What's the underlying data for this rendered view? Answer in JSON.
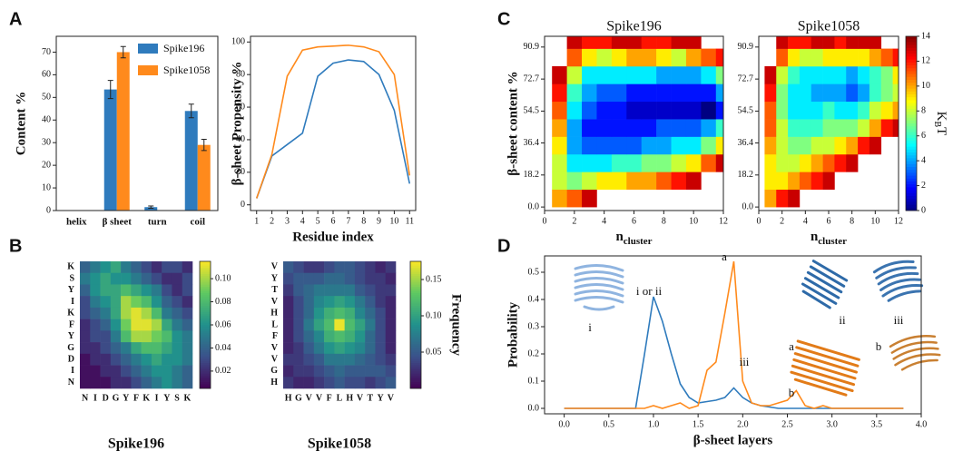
{
  "chart_data": [
    {
      "type": "bar",
      "panel_label": "A",
      "ylabel": "Content %",
      "categories": [
        "helix",
        "β sheet",
        "turn",
        "coil"
      ],
      "series": [
        {
          "name": "Spike196",
          "color": "#2f7bbd",
          "values": [
            0,
            53.5,
            1.5,
            44
          ],
          "errors": [
            0,
            4,
            0.5,
            3
          ]
        },
        {
          "name": "Spike1058",
          "color": "#ff8a1c",
          "values": [
            0,
            70,
            0,
            29
          ],
          "errors": [
            0,
            2.5,
            0,
            2.5
          ]
        }
      ],
      "ylim": [
        0,
        77
      ],
      "yticks": [
        0,
        10,
        20,
        30,
        40,
        50,
        60,
        70
      ],
      "legend": "upper right"
    },
    {
      "type": "line",
      "ylabel": "β-sheet Propensity %",
      "xlabel": "Residue index",
      "x": [
        1,
        2,
        3,
        4,
        5,
        6,
        7,
        8,
        9,
        10,
        11
      ],
      "series": [
        {
          "color": "#2f7bbd",
          "values": [
            4,
            30,
            37,
            44,
            79,
            87,
            89,
            88,
            80,
            58,
            13
          ]
        },
        {
          "color": "#ff8a1c",
          "values": [
            4,
            31,
            79,
            95,
            97,
            97.5,
            98,
            97,
            94,
            80,
            18
          ]
        }
      ],
      "xlim": [
        0.6,
        11.4
      ],
      "xticks": [
        1,
        2,
        3,
        4,
        5,
        6,
        7,
        8,
        9,
        10,
        11
      ],
      "ylim": [
        -3.5,
        103.5
      ],
      "yticks": [
        0,
        20,
        40,
        60,
        80,
        100
      ]
    },
    {
      "type": "heatmap",
      "panel_label": "B",
      "title": "Spike196",
      "colorscale": "viridis",
      "row_labels": [
        "K",
        "S",
        "Y",
        "I",
        "K",
        "F",
        "Y",
        "G",
        "D",
        "I",
        "N"
      ],
      "col_labels": [
        "N",
        "I",
        "D",
        "G",
        "Y",
        "F",
        "K",
        "I",
        "Y",
        "S",
        "K"
      ],
      "z": [
        [
          0.04,
          0.05,
          0.06,
          0.07,
          0.05,
          0.04,
          0.03,
          0.02,
          0.03,
          0.03,
          0.02
        ],
        [
          0.05,
          0.06,
          0.07,
          0.06,
          0.06,
          0.05,
          0.04,
          0.03,
          0.02,
          0.02,
          0.03
        ],
        [
          0.04,
          0.06,
          0.07,
          0.07,
          0.08,
          0.07,
          0.06,
          0.05,
          0.03,
          0.02,
          0.03
        ],
        [
          0.03,
          0.05,
          0.06,
          0.07,
          0.1,
          0.09,
          0.08,
          0.06,
          0.04,
          0.03,
          0.02
        ],
        [
          0.03,
          0.04,
          0.05,
          0.07,
          0.1,
          0.11,
          0.1,
          0.08,
          0.05,
          0.04,
          0.03
        ],
        [
          0.02,
          0.03,
          0.04,
          0.06,
          0.09,
          0.11,
          0.11,
          0.1,
          0.07,
          0.05,
          0.04
        ],
        [
          0.02,
          0.03,
          0.03,
          0.05,
          0.08,
          0.1,
          0.1,
          0.09,
          0.08,
          0.06,
          0.05
        ],
        [
          0.02,
          0.02,
          0.03,
          0.04,
          0.05,
          0.07,
          0.08,
          0.08,
          0.07,
          0.06,
          0.05
        ],
        [
          0.01,
          0.02,
          0.02,
          0.03,
          0.04,
          0.05,
          0.06,
          0.07,
          0.06,
          0.06,
          0.05
        ],
        [
          0.01,
          0.01,
          0.02,
          0.02,
          0.03,
          0.04,
          0.05,
          0.06,
          0.06,
          0.05,
          0.04
        ],
        [
          0.01,
          0.01,
          0.01,
          0.02,
          0.02,
          0.03,
          0.04,
          0.05,
          0.06,
          0.05,
          0.04
        ]
      ],
      "zlim": [
        0.005,
        0.115
      ],
      "colorbar_ticks": [
        0.02,
        0.04,
        0.06,
        0.08,
        {
          "value": 0.1,
          "label": "0.10"
        }
      ]
    },
    {
      "type": "heatmap",
      "title": "Spike1058",
      "colorscale": "viridis",
      "colorbar_label": "Frequency",
      "row_labels": [
        "V",
        "Y",
        "T",
        "V",
        "H",
        "L",
        "F",
        "V",
        "V",
        "G",
        "H"
      ],
      "col_labels": [
        "H",
        "G",
        "V",
        "V",
        "F",
        "L",
        "H",
        "V",
        "T",
        "Y",
        "V"
      ],
      "z": [
        [
          0.05,
          0.04,
          0.03,
          0.03,
          0.04,
          0.05,
          0.05,
          0.04,
          0.03,
          0.02,
          0.03
        ],
        [
          0.04,
          0.05,
          0.05,
          0.05,
          0.06,
          0.06,
          0.05,
          0.04,
          0.03,
          0.03,
          0.02
        ],
        [
          0.03,
          0.05,
          0.06,
          0.07,
          0.07,
          0.07,
          0.07,
          0.05,
          0.04,
          0.03,
          0.03
        ],
        [
          0.02,
          0.04,
          0.06,
          0.08,
          0.09,
          0.1,
          0.09,
          0.07,
          0.05,
          0.03,
          0.02
        ],
        [
          0.02,
          0.04,
          0.06,
          0.09,
          0.11,
          0.12,
          0.11,
          0.08,
          0.06,
          0.04,
          0.02
        ],
        [
          0.02,
          0.04,
          0.07,
          0.1,
          0.12,
          0.17,
          0.12,
          0.1,
          0.07,
          0.04,
          0.02
        ],
        [
          0.02,
          0.04,
          0.06,
          0.08,
          0.11,
          0.12,
          0.11,
          0.09,
          0.06,
          0.04,
          0.02
        ],
        [
          0.02,
          0.03,
          0.05,
          0.07,
          0.09,
          0.1,
          0.09,
          0.08,
          0.06,
          0.04,
          0.02
        ],
        [
          0.03,
          0.03,
          0.04,
          0.05,
          0.07,
          0.07,
          0.07,
          0.06,
          0.05,
          0.04,
          0.03
        ],
        [
          0.02,
          0.03,
          0.03,
          0.04,
          0.05,
          0.06,
          0.05,
          0.05,
          0.05,
          0.05,
          0.04
        ],
        [
          0.03,
          0.02,
          0.02,
          0.03,
          0.04,
          0.05,
          0.04,
          0.04,
          0.03,
          0.04,
          0.05
        ]
      ],
      "zlim": [
        0,
        0.175
      ],
      "colorbar_ticks": [
        0.05,
        {
          "value": 0.1,
          "label": "0.10"
        },
        0.15
      ]
    },
    {
      "type": "contour",
      "panel_label": "C",
      "title": "Spike196",
      "colorscale": "jet",
      "ylabel": "β-sheet content %",
      "xlabel": "n",
      "xlabel_sub": "cluster",
      "x": [
        1,
        2,
        3,
        4,
        5,
        6,
        7,
        8,
        9,
        10,
        11,
        12
      ],
      "y": [
        5,
        15,
        25,
        35,
        45,
        55,
        65,
        75,
        85,
        95
      ],
      "z": [
        [
          10,
          11,
          13,
          null,
          null,
          null,
          null,
          null,
          null,
          null,
          null,
          null
        ],
        [
          8,
          7,
          8,
          9,
          9,
          10,
          10,
          11,
          12,
          13,
          null,
          null
        ],
        [
          8,
          5,
          5,
          5,
          6,
          6,
          7,
          7,
          8,
          9,
          11,
          13
        ],
        [
          9,
          4,
          3,
          3,
          3,
          3,
          4,
          4,
          5,
          5,
          7,
          9
        ],
        [
          10,
          4,
          2,
          2,
          2,
          2,
          2,
          3,
          3,
          3,
          4,
          6
        ],
        [
          11,
          5,
          3,
          2,
          2,
          1,
          1,
          1,
          1,
          1,
          0,
          2
        ],
        [
          12,
          6,
          4,
          3,
          3,
          2,
          2,
          2,
          2,
          2,
          2,
          4
        ],
        [
          13,
          8,
          5,
          5,
          5,
          5,
          5,
          4,
          4,
          4,
          5,
          7
        ],
        [
          null,
          11,
          9,
          8,
          9,
          10,
          10,
          9,
          8,
          10,
          11,
          12
        ],
        [
          null,
          13,
          12,
          12,
          13,
          13,
          12,
          12,
          13,
          13,
          null,
          null
        ]
      ],
      "zlim": [
        0,
        14
      ],
      "xlim": [
        0,
        12
      ],
      "xticks": [
        0,
        2,
        4,
        6,
        8,
        10,
        12
      ],
      "ylim": [
        -2,
        97
      ],
      "yticks": [
        {
          "value": 0,
          "label": "0.0"
        },
        18.2,
        36.4,
        54.5,
        72.7,
        90.9
      ]
    },
    {
      "type": "contour",
      "title": "Spike1058",
      "colorscale": "jet",
      "xlabel": "n",
      "xlabel_sub": "cluster",
      "colorbar_label": [
        "K",
        "B",
        "T"
      ],
      "x": [
        1,
        2,
        3,
        4,
        5,
        6,
        7,
        8,
        9,
        10,
        11,
        12
      ],
      "y": [
        5,
        15,
        25,
        35,
        45,
        55,
        65,
        75,
        85,
        95
      ],
      "z": [
        [
          10,
          12,
          13,
          null,
          null,
          null,
          null,
          null,
          null,
          null,
          null,
          null
        ],
        [
          9,
          9,
          10,
          11,
          12,
          13,
          null,
          null,
          null,
          null,
          null,
          null
        ],
        [
          9,
          8,
          8,
          9,
          10,
          11,
          12,
          13,
          null,
          null,
          null,
          null
        ],
        [
          10,
          8,
          7,
          7,
          8,
          8,
          9,
          10,
          12,
          13,
          null,
          null
        ],
        [
          11,
          8,
          6,
          6,
          6,
          7,
          7,
          7,
          8,
          10,
          12,
          13
        ],
        [
          11,
          7,
          5,
          5,
          5,
          6,
          5,
          5,
          6,
          8,
          9,
          10
        ],
        [
          12,
          7,
          5,
          5,
          4,
          4,
          4,
          3,
          4,
          6,
          7,
          8
        ],
        [
          13,
          8,
          6,
          5,
          5,
          5,
          5,
          4,
          5,
          6,
          7,
          9
        ],
        [
          null,
          11,
          9,
          8,
          8,
          9,
          9,
          9,
          9,
          10,
          11,
          12
        ],
        [
          null,
          13,
          12,
          12,
          13,
          13,
          12,
          13,
          13,
          13,
          null,
          null
        ]
      ],
      "zlim": [
        0,
        14
      ],
      "xlim": [
        0,
        12
      ],
      "xticks": [
        0,
        2,
        4,
        6,
        8,
        10,
        12
      ],
      "ylim": [
        -2,
        97
      ],
      "yticks": [
        {
          "value": 0,
          "label": "0.0"
        },
        18.2,
        36.4,
        54.5,
        72.7,
        90.9
      ],
      "colorbar_ticks": [
        0,
        2,
        4,
        6,
        8,
        10,
        12,
        14
      ]
    },
    {
      "type": "line",
      "panel_label": "D",
      "ylabel": "Probability",
      "xlabel": "β-sheet layers",
      "x": [
        0,
        0.2,
        0.4,
        0.6,
        0.8,
        0.9,
        1.0,
        1.1,
        1.2,
        1.3,
        1.4,
        1.5,
        1.6,
        1.7,
        1.8,
        1.9,
        2.0,
        2.1,
        2.2,
        2.3,
        2.4,
        2.5,
        2.6,
        2.7,
        2.8,
        2.9,
        3.0,
        3.2,
        3.4,
        3.6,
        3.8
      ],
      "series": [
        {
          "color": "#2f7bbd",
          "values": [
            0,
            0,
            0,
            0,
            0,
            0.2,
            0.41,
            0.32,
            0.2,
            0.09,
            0.04,
            0.02,
            0.025,
            0.03,
            0.04,
            0.075,
            0.04,
            0.02,
            0.01,
            0.005,
            0,
            0,
            0,
            0,
            0,
            0,
            0,
            0,
            0,
            0,
            0
          ]
        },
        {
          "color": "#ff8a1c",
          "values": [
            0,
            0,
            0,
            0,
            0,
            0,
            0.01,
            0,
            0.01,
            0.02,
            0,
            0.01,
            0.14,
            0.17,
            0.35,
            0.54,
            0.1,
            0.02,
            0.01,
            0.01,
            0.02,
            0.03,
            0.065,
            0.01,
            0,
            0.01,
            0,
            0,
            0,
            0,
            0
          ]
        }
      ],
      "xlim": [
        -0.22,
        4.0
      ],
      "xticks": [
        {
          "value": 0,
          "label": "0.0"
        },
        0.5,
        {
          "value": 1,
          "label": "1.0"
        },
        1.5,
        {
          "value": 2,
          "label": "2.0"
        },
        2.5,
        {
          "value": 3,
          "label": "3.0"
        },
        3.5,
        {
          "value": 4,
          "label": "4.0"
        }
      ],
      "ylim": [
        -0.02,
        0.56
      ],
      "yticks": [
        {
          "value": 0,
          "label": "0.0"
        },
        0.1,
        0.2,
        0.3,
        0.4,
        0.5
      ],
      "annotations": [
        {
          "text": "i or ii",
          "color": "#2f7bbd"
        },
        {
          "text": "iii",
          "color": "#2f7bbd"
        },
        {
          "text": "a",
          "color": "#ff8a1c"
        },
        {
          "text": "b",
          "color": "#ff8a1c"
        },
        {
          "text": "i",
          "color": "#2f7bbd"
        },
        {
          "text": "ii",
          "color": "#2f7bbd"
        },
        {
          "text": "iii",
          "color": "#2f7bbd"
        },
        {
          "text": "a",
          "color": "#ff8a1c"
        },
        {
          "text": "b",
          "color": "#ff8a1c"
        }
      ]
    }
  ]
}
